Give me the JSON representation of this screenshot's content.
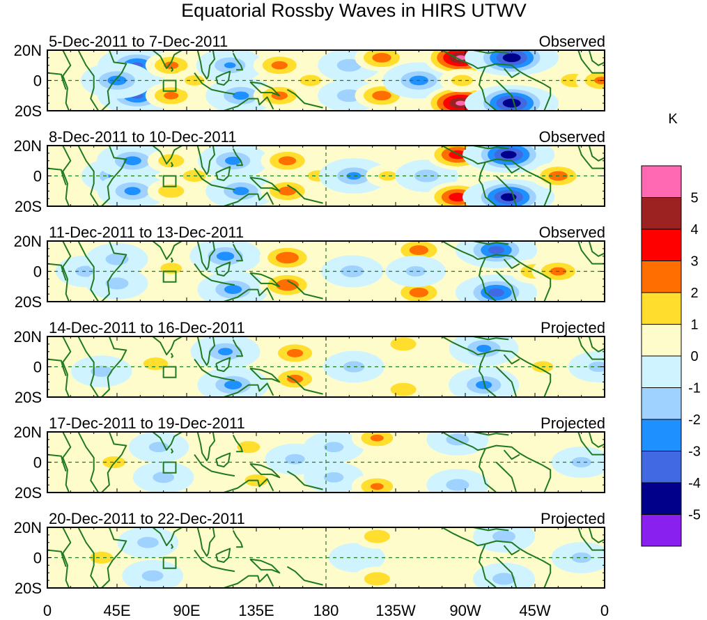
{
  "chart_data": {
    "type": "heatmap",
    "title": "Equatorial Rossby Waves in HIRS UTWV",
    "xlabel": "",
    "ylabel": "",
    "x_ticks": [
      "0",
      "45E",
      "90E",
      "135E",
      "180",
      "135W",
      "90W",
      "45W",
      "0"
    ],
    "x_range_deg": [
      0,
      360
    ],
    "y_ticks": [
      "20N",
      "0",
      "20S"
    ],
    "y_range_deg": [
      -20,
      20
    ],
    "colorbar": {
      "units": "K",
      "levels": [
        "5",
        "4",
        "3",
        "2",
        "1",
        "0",
        "-1",
        "-2",
        "-3",
        "-4",
        "-5"
      ],
      "colors": [
        "#ff69b4",
        "#9c2222",
        "#ff0000",
        "#ff6e00",
        "#ffde2e",
        "#fffccc",
        "#d0f4ff",
        "#a0d2ff",
        "#1e90ff",
        "#4169e1",
        "#00008b",
        "#8a20ee"
      ]
    },
    "panels": [
      {
        "date_range": "5-Dec-2011 to 7-Dec-2011",
        "status": "Observed",
        "anomalies": [
          {
            "lon": 58,
            "lat": 10,
            "value": -3.2
          },
          {
            "lon": 58,
            "lat": -10,
            "value": -3.2
          },
          {
            "lon": 45,
            "lat": 0,
            "value": -2.5
          },
          {
            "lon": 80,
            "lat": 10,
            "value": 2.2
          },
          {
            "lon": 80,
            "lat": -10,
            "value": 2.2
          },
          {
            "lon": 95,
            "lat": 0,
            "value": 1.2
          },
          {
            "lon": 118,
            "lat": 10,
            "value": -2.0
          },
          {
            "lon": 125,
            "lat": -10,
            "value": -2.3
          },
          {
            "lon": 150,
            "lat": 10,
            "value": 2.3
          },
          {
            "lon": 150,
            "lat": -10,
            "value": 2.3
          },
          {
            "lon": 170,
            "lat": 0,
            "value": 1.3
          },
          {
            "lon": 195,
            "lat": 10,
            "value": -1.5
          },
          {
            "lon": 195,
            "lat": -10,
            "value": -1.5
          },
          {
            "lon": 216,
            "lat": 15,
            "value": 2.5
          },
          {
            "lon": 216,
            "lat": -10,
            "value": 2.5
          },
          {
            "lon": 240,
            "lat": 0,
            "value": -2.5
          },
          {
            "lon": 267,
            "lat": 15,
            "value": 5.2
          },
          {
            "lon": 267,
            "lat": -15,
            "value": 5.2
          },
          {
            "lon": 268,
            "lat": 0,
            "value": 1.3
          },
          {
            "lon": 300,
            "lat": 15,
            "value": -4.8
          },
          {
            "lon": 300,
            "lat": -15,
            "value": -4.8
          },
          {
            "lon": 340,
            "lat": 0,
            "value": 1.6
          },
          {
            "lon": 358,
            "lat": 0,
            "value": 2.2
          }
        ]
      },
      {
        "date_range": "8-Dec-2011 to 10-Dec-2011",
        "status": "Observed",
        "anomalies": [
          {
            "lon": 45,
            "lat": 0,
            "value": -2.4
          },
          {
            "lon": 55,
            "lat": 10,
            "value": -2.4
          },
          {
            "lon": 55,
            "lat": -10,
            "value": -2.3
          },
          {
            "lon": 80,
            "lat": 10,
            "value": 1.6
          },
          {
            "lon": 80,
            "lat": -10,
            "value": 1.6
          },
          {
            "lon": 95,
            "lat": 0,
            "value": 1.4
          },
          {
            "lon": 120,
            "lat": 10,
            "value": -2.3
          },
          {
            "lon": 125,
            "lat": -10,
            "value": -2.3
          },
          {
            "lon": 155,
            "lat": 10,
            "value": 2.4
          },
          {
            "lon": 155,
            "lat": -10,
            "value": 2.4
          },
          {
            "lon": 175,
            "lat": 0,
            "value": 1.3
          },
          {
            "lon": 198,
            "lat": 0,
            "value": -2.2
          },
          {
            "lon": 220,
            "lat": 0,
            "value": 1.1
          },
          {
            "lon": 245,
            "lat": 0,
            "value": -1.5
          },
          {
            "lon": 265,
            "lat": 14,
            "value": 3.6
          },
          {
            "lon": 265,
            "lat": -14,
            "value": 3.6
          },
          {
            "lon": 298,
            "lat": 14,
            "value": -4.6
          },
          {
            "lon": 298,
            "lat": -14,
            "value": -4.6
          },
          {
            "lon": 330,
            "lat": 0,
            "value": 2.5
          }
        ]
      },
      {
        "date_range": "11-Dec-2011 to 13-Dec-2011",
        "status": "Observed",
        "anomalies": [
          {
            "lon": 25,
            "lat": 0,
            "value": -1.3
          },
          {
            "lon": 45,
            "lat": 8,
            "value": -1.4
          },
          {
            "lon": 45,
            "lat": -8,
            "value": -1.4
          },
          {
            "lon": 80,
            "lat": 2,
            "value": 1.3
          },
          {
            "lon": 115,
            "lat": 10,
            "value": -2.4
          },
          {
            "lon": 120,
            "lat": -12,
            "value": -2.4
          },
          {
            "lon": 155,
            "lat": 9,
            "value": 2.8
          },
          {
            "lon": 155,
            "lat": -9,
            "value": 2.8
          },
          {
            "lon": 197,
            "lat": 0,
            "value": -1.4
          },
          {
            "lon": 240,
            "lat": 14,
            "value": 2.5
          },
          {
            "lon": 240,
            "lat": -14,
            "value": 2.5
          },
          {
            "lon": 238,
            "lat": 0,
            "value": -1.2
          },
          {
            "lon": 290,
            "lat": 14,
            "value": -3.5
          },
          {
            "lon": 290,
            "lat": -14,
            "value": -3.5
          },
          {
            "lon": 315,
            "lat": 0,
            "value": 1.8
          },
          {
            "lon": 330,
            "lat": 0,
            "value": 2.3
          }
        ]
      },
      {
        "date_range": "14-Dec-2011 to 16-Dec-2011",
        "status": "Projected",
        "anomalies": [
          {
            "lon": 35,
            "lat": -3,
            "value": -1.3
          },
          {
            "lon": 70,
            "lat": 2,
            "value": 1.5
          },
          {
            "lon": 115,
            "lat": 10,
            "value": -2.2
          },
          {
            "lon": 120,
            "lat": -12,
            "value": -2.4
          },
          {
            "lon": 160,
            "lat": 9,
            "value": 2.3
          },
          {
            "lon": 160,
            "lat": -8,
            "value": 2.3
          },
          {
            "lon": 198,
            "lat": 0,
            "value": -1.3
          },
          {
            "lon": 230,
            "lat": 15,
            "value": 1.6
          },
          {
            "lon": 230,
            "lat": -15,
            "value": 1.6
          },
          {
            "lon": 282,
            "lat": 12,
            "value": -2.2
          },
          {
            "lon": 282,
            "lat": -12,
            "value": -2.3
          },
          {
            "lon": 320,
            "lat": 0,
            "value": 1.3
          },
          {
            "lon": 356,
            "lat": 0,
            "value": -1.2
          }
        ]
      },
      {
        "date_range": "17-Dec-2011 to 19-Dec-2011",
        "status": "Projected",
        "anomalies": [
          {
            "lon": 43,
            "lat": 0,
            "value": 1.4
          },
          {
            "lon": 75,
            "lat": -10,
            "value": -1.3
          },
          {
            "lon": 72,
            "lat": 10,
            "value": -1.2
          },
          {
            "lon": 130,
            "lat": 10,
            "value": 1.4
          },
          {
            "lon": 135,
            "lat": -12,
            "value": 1.4
          },
          {
            "lon": 160,
            "lat": 2,
            "value": -1.2
          },
          {
            "lon": 185,
            "lat": 10,
            "value": -1.2
          },
          {
            "lon": 185,
            "lat": -10,
            "value": -1.2
          },
          {
            "lon": 213,
            "lat": 16,
            "value": 2.1
          },
          {
            "lon": 213,
            "lat": -16,
            "value": 2.1
          },
          {
            "lon": 265,
            "lat": 15,
            "value": -1.4
          },
          {
            "lon": 265,
            "lat": -15,
            "value": -1.4
          },
          {
            "lon": 345,
            "lat": 0,
            "value": -1.2
          }
        ]
      },
      {
        "date_range": "20-Dec-2011 to 22-Dec-2011",
        "status": "Projected",
        "anomalies": [
          {
            "lon": 35,
            "lat": 0,
            "value": 1.4
          },
          {
            "lon": 65,
            "lat": 10,
            "value": -1.3
          },
          {
            "lon": 68,
            "lat": -12,
            "value": -1.3
          },
          {
            "lon": 200,
            "lat": 0,
            "value": -0.8
          },
          {
            "lon": 213,
            "lat": 14,
            "value": 1.6
          },
          {
            "lon": 213,
            "lat": -14,
            "value": 1.6
          },
          {
            "lon": 295,
            "lat": 14,
            "value": -1.4
          },
          {
            "lon": 295,
            "lat": -14,
            "value": -1.4
          },
          {
            "lon": 345,
            "lat": 0,
            "value": -1.2
          }
        ]
      }
    ]
  }
}
